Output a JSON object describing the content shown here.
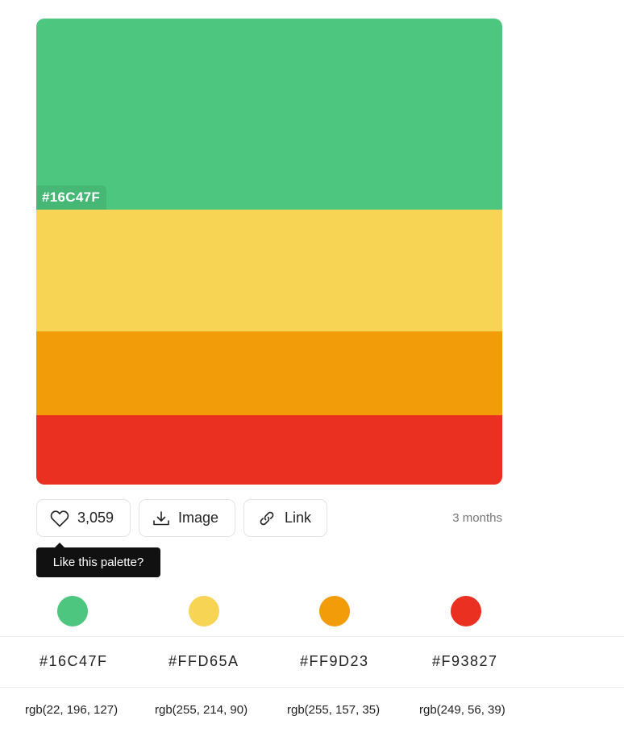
{
  "palette": {
    "colors": [
      "#4DC77F",
      "#F8D454",
      "#F39C0A",
      "#EA3020"
    ],
    "hovered_hex": "#16C47F"
  },
  "actions": {
    "like_count": "3,059",
    "image_label": "Image",
    "link_label": "Link",
    "age": "3 months",
    "tooltip": "Like this palette?"
  },
  "swatches": [
    {
      "hex": "#16C47F",
      "rgb": "rgb(22, 196, 127)",
      "color": "#4DC77F"
    },
    {
      "hex": "#FFD65A",
      "rgb": "rgb(255, 214, 90)",
      "color": "#F8D454"
    },
    {
      "hex": "#FF9D23",
      "rgb": "rgb(255, 157, 35)",
      "color": "#F39C0A"
    },
    {
      "hex": "#F93827",
      "rgb": "rgb(249, 56, 39)",
      "color": "#EA3020"
    }
  ],
  "icons": {
    "like": "heart-icon",
    "image": "download-icon",
    "link": "link-icon"
  }
}
